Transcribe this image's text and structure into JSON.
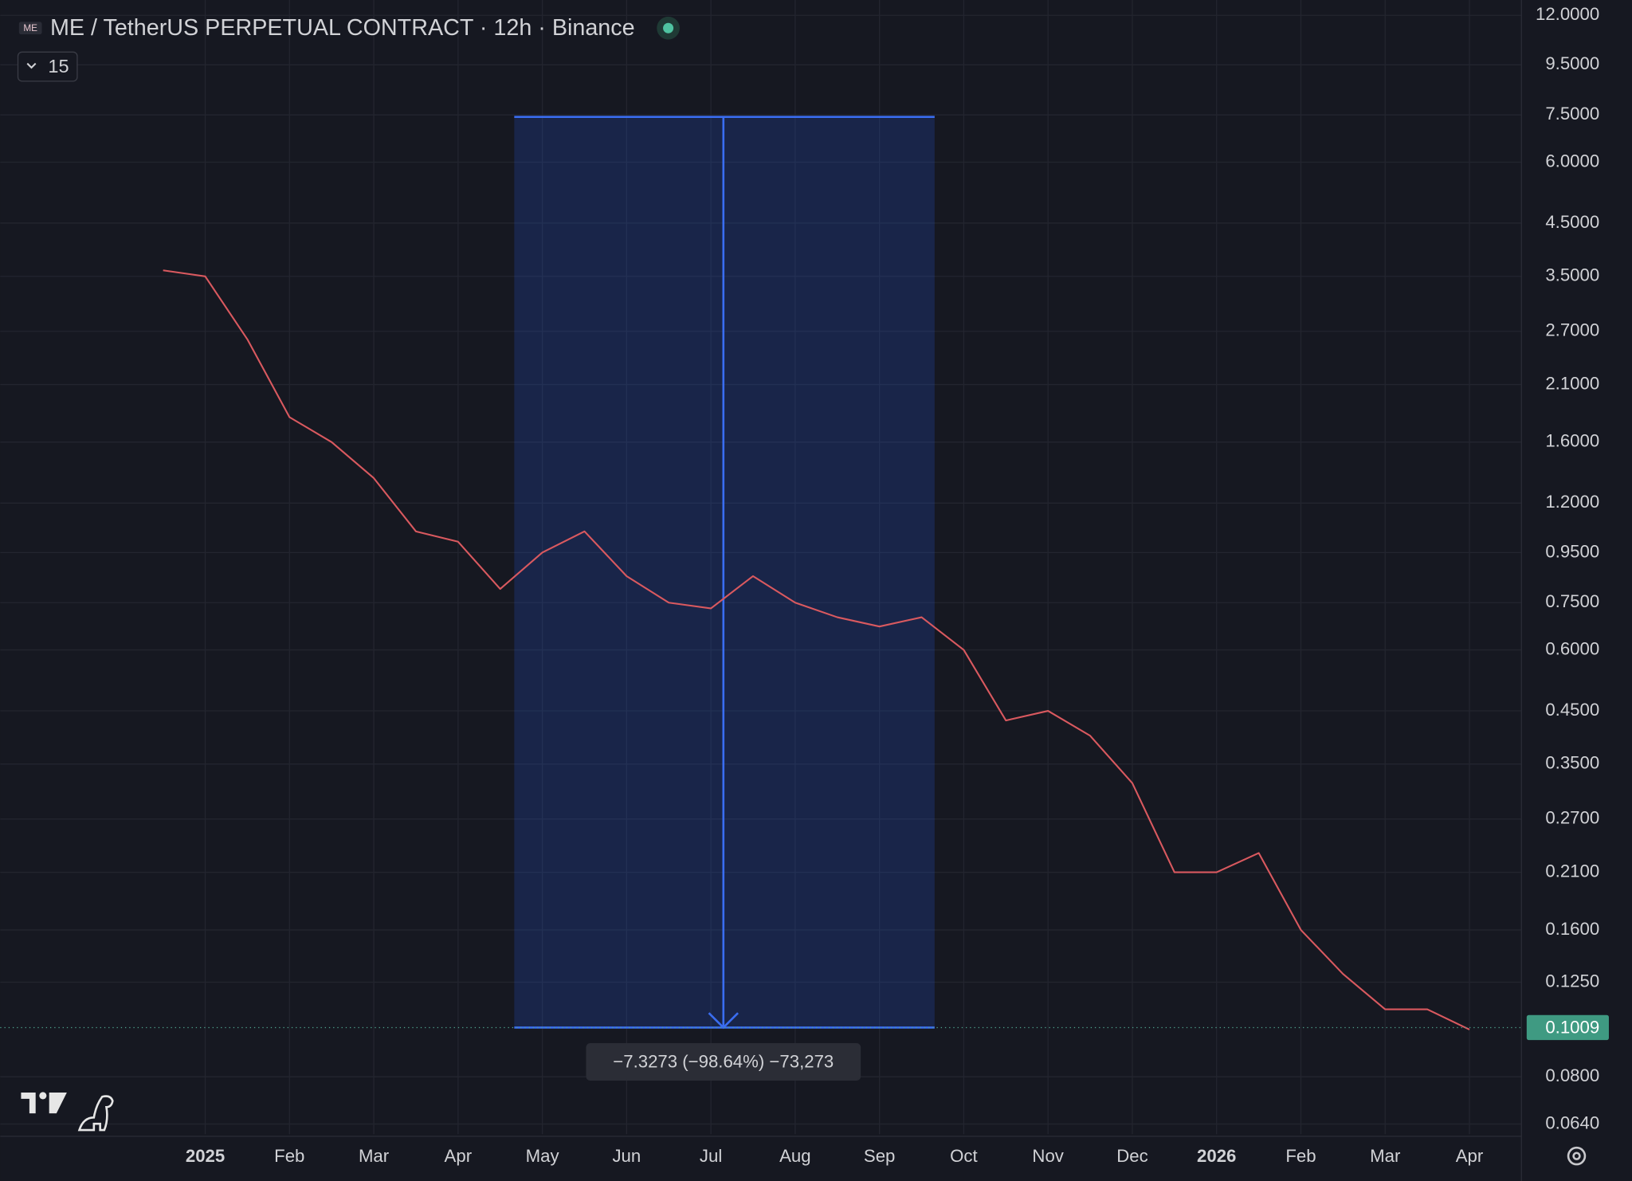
{
  "chart_data": {
    "type": "line",
    "title": "ME / TetherUS PERPETUAL CONTRACT · 12h · Binance",
    "interval_badge": "15",
    "log_scale": true,
    "grid": true,
    "color": "#d9595f",
    "categories": [
      null,
      "2025",
      null,
      "Feb",
      null,
      "Mar",
      null,
      "Apr",
      null,
      "May",
      null,
      "Jun",
      null,
      "Jul",
      null,
      "Aug",
      null,
      "Sep",
      null,
      "Oct",
      null,
      "Nov",
      null,
      "Dec",
      null,
      "2026",
      null,
      "Feb",
      null,
      "Mar",
      null,
      "Apr"
    ],
    "values": [
      3.6,
      3.5,
      2.6,
      1.8,
      1.6,
      1.35,
      1.05,
      1.0,
      0.8,
      0.95,
      1.05,
      0.85,
      0.75,
      0.73,
      0.85,
      0.75,
      0.7,
      0.67,
      0.7,
      0.6,
      0.43,
      0.45,
      0.4,
      0.32,
      0.21,
      0.21,
      0.23,
      0.16,
      0.13,
      0.11,
      0.11,
      0.1
    ],
    "ylim": [
      0.061,
      12.9
    ],
    "yticks": [
      {
        "value": 12,
        "label": "12.0000"
      },
      {
        "value": 9.5,
        "label": "9.5000"
      },
      {
        "value": 7.5,
        "label": "7.5000"
      },
      {
        "value": 6,
        "label": "6.0000"
      },
      {
        "value": 4.5,
        "label": "4.5000"
      },
      {
        "value": 3.5,
        "label": "3.5000"
      },
      {
        "value": 2.7,
        "label": "2.7000"
      },
      {
        "value": 2.1,
        "label": "2.1000"
      },
      {
        "value": 1.6,
        "label": "1.6000"
      },
      {
        "value": 1.2,
        "label": "1.2000"
      },
      {
        "value": 0.95,
        "label": "0.9500"
      },
      {
        "value": 0.75,
        "label": "0.7500"
      },
      {
        "value": 0.6,
        "label": "0.6000"
      },
      {
        "value": 0.45,
        "label": "0.4500"
      },
      {
        "value": 0.35,
        "label": "0.3500"
      },
      {
        "value": 0.27,
        "label": "0.2700"
      },
      {
        "value": 0.21,
        "label": "0.2100"
      },
      {
        "value": 0.16,
        "label": "0.1600"
      },
      {
        "value": 0.125,
        "label": "0.1250"
      },
      {
        "value": 0.08,
        "label": "0.0800"
      },
      {
        "value": 0.064,
        "label": "0.0640"
      }
    ],
    "last_price": 0.1009,
    "measure": {
      "from": 7.4282,
      "to": 0.1009,
      "label": "−7.3273 (−98.64%) −73,273"
    }
  }
}
